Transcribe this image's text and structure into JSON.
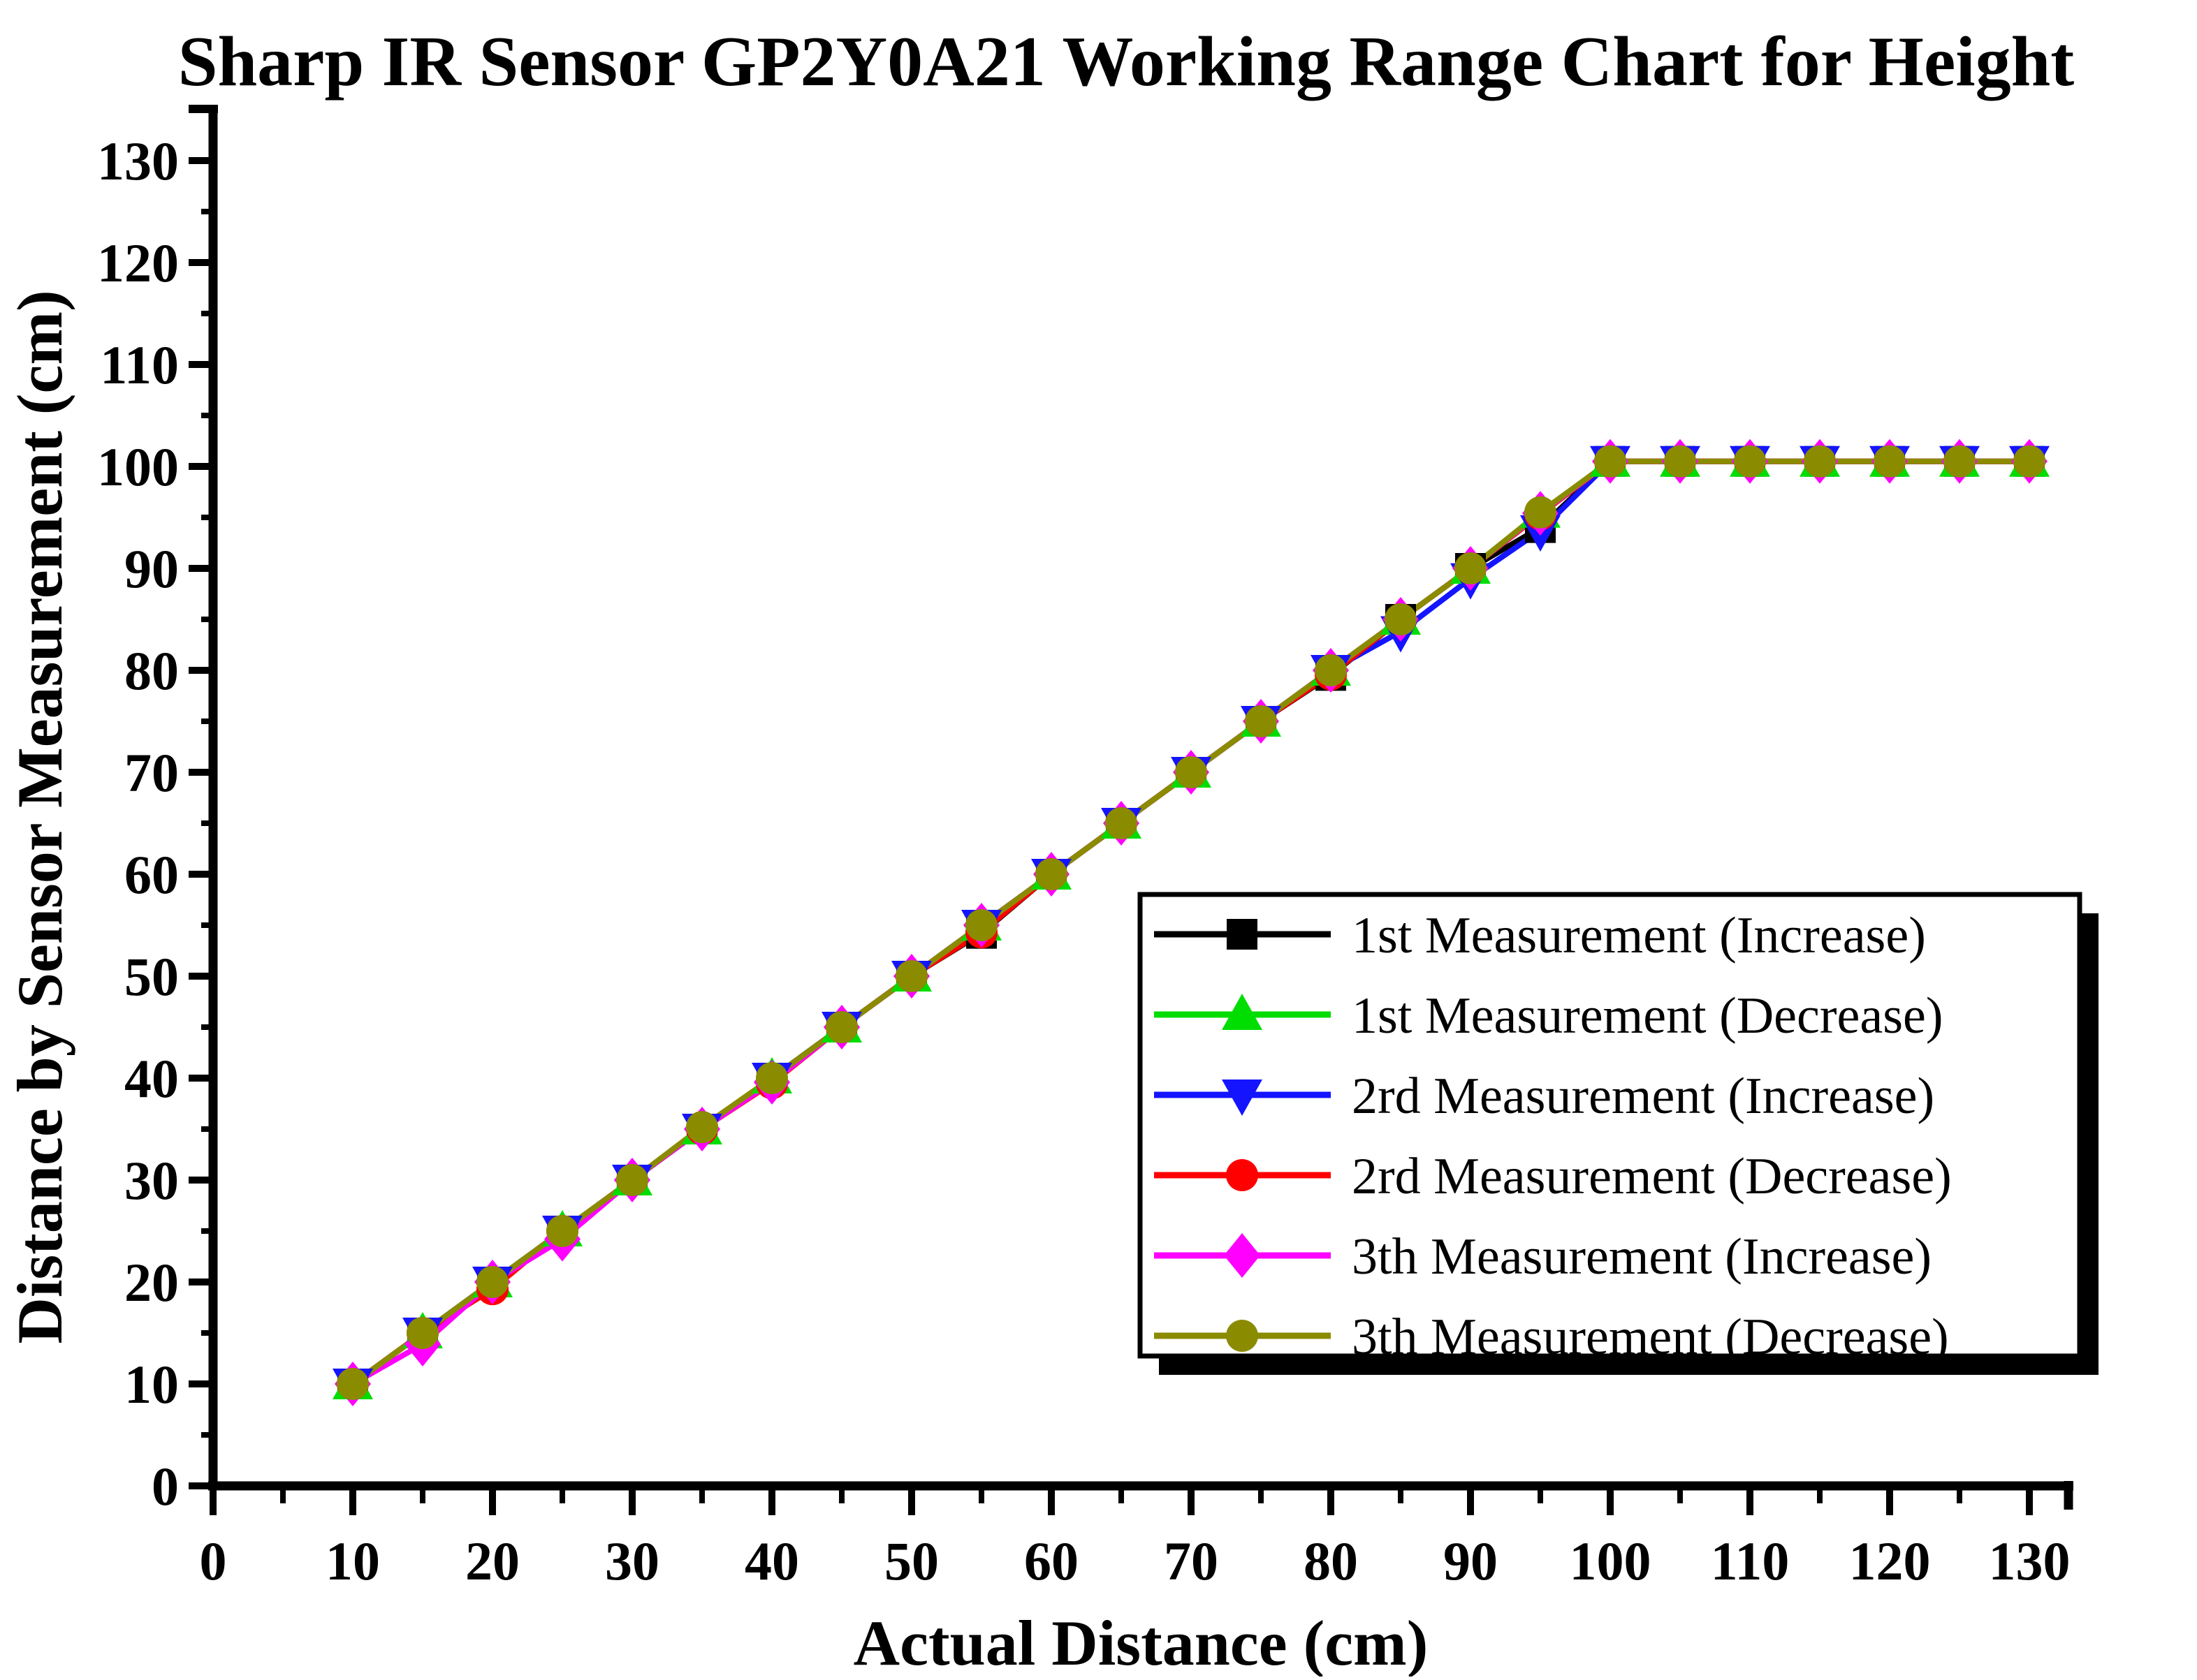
{
  "title": "Sharp IR Sensor GP2Y0A21 Working Range Chart for Height",
  "colors": {
    "background": "#FFFFFF",
    "axis": "#000000",
    "text": "#000000",
    "legend_border": "#000000",
    "legend_shadow": "#000000",
    "series_black": "#000000",
    "series_green": "#00DD00",
    "series_blue": "#1414FF",
    "series_red": "#FF0000",
    "series_magenta": "#FF00FF",
    "series_dark_yellow": "#8B8B00"
  },
  "chart_data": {
    "type": "line",
    "title": "Sharp IR Sensor GP2Y0A21 Working Range Chart for Height",
    "xlabel": "Actual Distance (cm)",
    "ylabel": "Distance by Sensor Measurement (cm)",
    "xlim": [
      0,
      133
    ],
    "ylim": [
      0,
      135
    ],
    "x_ticks": [
      0,
      10,
      20,
      30,
      40,
      50,
      60,
      70,
      80,
      90,
      100,
      110,
      120,
      130
    ],
    "y_ticks": [
      0,
      10,
      20,
      30,
      40,
      50,
      60,
      70,
      80,
      90,
      100,
      110,
      120,
      130
    ],
    "minor_tick_step": 5,
    "grid": false,
    "legend_position": "inside lower-right",
    "x": [
      10,
      15,
      20,
      25,
      30,
      35,
      40,
      45,
      50,
      55,
      60,
      65,
      70,
      75,
      80,
      85,
      90,
      95,
      100,
      105,
      110,
      115,
      120,
      125,
      130
    ],
    "series": [
      {
        "name": "1st Measurement (Increase)",
        "color": "#000000",
        "marker": "square",
        "values": [
          10,
          15,
          20,
          25,
          30,
          35,
          40,
          45,
          50,
          54.2,
          60,
          65,
          70,
          75,
          79.5,
          85,
          90,
          94,
          100.5,
          100.5,
          100.5,
          100.5,
          100.5,
          100.5,
          100.5
        ]
      },
      {
        "name": "1st Measurement (Decrease)",
        "color": "#00DD00",
        "marker": "triangle-up",
        "values": [
          10,
          15,
          20,
          25,
          30,
          35,
          40,
          45,
          50,
          55,
          60,
          65,
          70,
          75,
          80,
          85,
          90,
          95.5,
          100.5,
          100.5,
          100.5,
          100.5,
          100.5,
          100.5,
          100.5
        ]
      },
      {
        "name": "2rd Measurement (Increase)",
        "color": "#1414FF",
        "marker": "triangle-down",
        "values": [
          10,
          15,
          20,
          25,
          30,
          35,
          40,
          45,
          50,
          55,
          60,
          65,
          70,
          75,
          80,
          83.8,
          89,
          93.7,
          100.5,
          100.5,
          100.5,
          100.5,
          100.5,
          100.5,
          100.5
        ]
      },
      {
        "name": "2rd Measurement (Decrease)",
        "color": "#FF0000",
        "marker": "circle",
        "values": [
          10,
          15,
          19.3,
          25,
          30,
          35,
          39.5,
          45,
          50,
          54.3,
          60,
          65,
          70,
          75,
          79.6,
          85,
          90,
          95.3,
          100.5,
          100.5,
          100.5,
          100.5,
          100.5,
          100.5,
          100.5
        ]
      },
      {
        "name": "3th Measurement (Increase)",
        "color": "#FF00FF",
        "marker": "diamond",
        "values": [
          10,
          13.9,
          20,
          24.2,
          30,
          35,
          39.6,
          45,
          50,
          55,
          60,
          65,
          70,
          75,
          80,
          85,
          90,
          95.4,
          100.5,
          100.5,
          100.5,
          100.5,
          100.5,
          100.5,
          100.5
        ]
      },
      {
        "name": "3th Measurement (Decrease)",
        "color": "#8B8B00",
        "marker": "circle",
        "values": [
          10,
          15,
          20,
          25,
          30,
          35.2,
          40,
          45,
          50,
          55,
          60,
          65,
          70,
          75,
          80,
          85,
          90,
          95.5,
          100.5,
          100.5,
          100.5,
          100.5,
          100.5,
          100.5,
          100.5
        ]
      }
    ]
  }
}
